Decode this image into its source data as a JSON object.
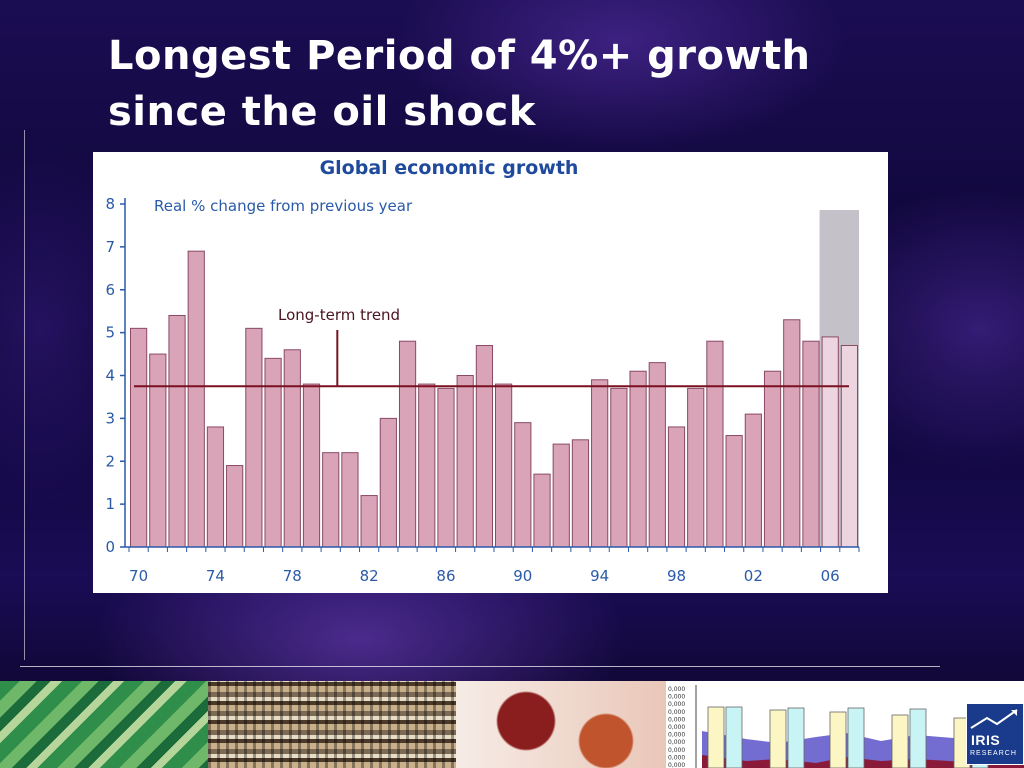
{
  "slide": {
    "title_line1": "Longest Period of 4%+ growth",
    "title_line2": "since the oil shock",
    "background_color": "#12073f"
  },
  "chart_data": {
    "type": "bar",
    "title": "Global economic growth",
    "subtitle": "Real % change from previous year",
    "annotation": "Long-term trend",
    "trend_value": 3.75,
    "ylim": [
      0,
      8
    ],
    "y_ticks": [
      "0",
      "1",
      "2",
      "3",
      "4",
      "5",
      "6",
      "7",
      "8"
    ],
    "x_tick_labels": [
      {
        "label": "70",
        "year": 1970
      },
      {
        "label": "74",
        "year": 1974
      },
      {
        "label": "78",
        "year": 1978
      },
      {
        "label": "82",
        "year": 1982
      },
      {
        "label": "86",
        "year": 1986
      },
      {
        "label": "90",
        "year": 1990
      },
      {
        "label": "94",
        "year": 1994
      },
      {
        "label": "98",
        "year": 1998
      },
      {
        "label": "02",
        "year": 2002
      },
      {
        "label": "06",
        "year": 2006
      }
    ],
    "categories": [
      1970,
      1971,
      1972,
      1973,
      1974,
      1975,
      1976,
      1977,
      1978,
      1979,
      1980,
      1981,
      1982,
      1983,
      1984,
      1985,
      1986,
      1987,
      1988,
      1989,
      1990,
      1991,
      1992,
      1993,
      1994,
      1995,
      1996,
      1997,
      1998,
      1999,
      2000,
      2001,
      2002,
      2003,
      2004,
      2005,
      2006,
      2007
    ],
    "values": [
      5.1,
      4.5,
      5.4,
      6.9,
      2.8,
      1.9,
      5.1,
      4.4,
      4.6,
      3.8,
      2.2,
      2.2,
      1.2,
      3.0,
      4.8,
      3.8,
      3.7,
      4.0,
      4.7,
      3.8,
      2.9,
      1.7,
      2.4,
      2.5,
      3.9,
      3.7,
      4.1,
      4.3,
      2.8,
      3.7,
      4.8,
      2.6,
      3.1,
      4.1,
      5.3,
      4.8,
      4.9,
      4.7
    ],
    "forecast_years": [
      2006,
      2007
    ],
    "colors": {
      "bar_fill": "#d9a3b8",
      "bar_stroke": "#8a4a66",
      "forecast_fill": "#edd5df",
      "forecast_band": "#c4c2c8",
      "trend_line": "#7a1020",
      "title": "#1f4a9c",
      "axis": "#2a5aa8"
    }
  },
  "logo": {
    "word": "IRIS",
    "sub": "RESEARCH"
  },
  "decor": {
    "mini_axis_labels": [
      "0,000",
      "0,000",
      "0,000",
      "0,000",
      "0,000",
      "0,000",
      "0,000",
      "0,000",
      "0,000",
      "0,000",
      "0,000"
    ]
  }
}
